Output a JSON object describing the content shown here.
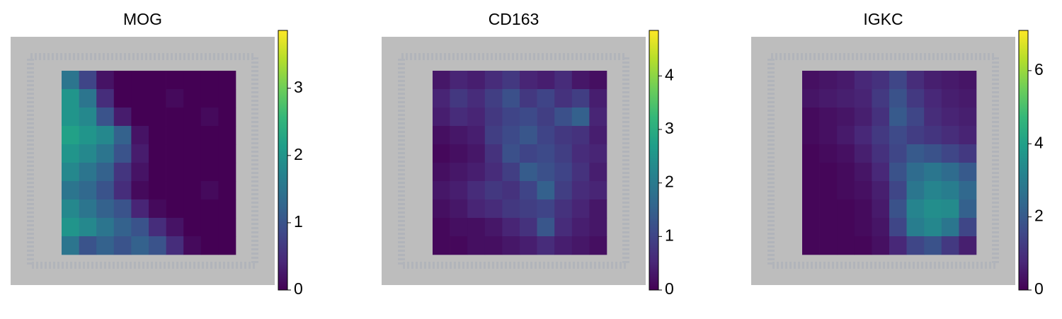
{
  "chart_data": [
    {
      "type": "spatial",
      "title": "MOG",
      "colormap": "viridis",
      "clim": [
        0,
        3.86
      ],
      "cticks": [
        0,
        1,
        2,
        3
      ],
      "values": [
        [
          1.5,
          0.8,
          0.2,
          0,
          0,
          0,
          0,
          0,
          0,
          0
        ],
        [
          2,
          1.5,
          0.5,
          0,
          0,
          0,
          0.1,
          0,
          0,
          0
        ],
        [
          2,
          1.8,
          1,
          0.3,
          0,
          0,
          0,
          0,
          0.1,
          0
        ],
        [
          2.2,
          2,
          1.8,
          1.2,
          0.2,
          0,
          0,
          0,
          0,
          0
        ],
        [
          2,
          1.8,
          1.5,
          1,
          0.3,
          0,
          0,
          0,
          0,
          0
        ],
        [
          1.8,
          1.5,
          1.2,
          0.6,
          0.2,
          0,
          0,
          0,
          0,
          0
        ],
        [
          1.5,
          1.3,
          1,
          0.5,
          0.1,
          0,
          0,
          0,
          0.1,
          0
        ],
        [
          1.8,
          1.5,
          1.2,
          1,
          0.4,
          0.1,
          0,
          0,
          0,
          0
        ],
        [
          2,
          1.8,
          1.5,
          1.2,
          1,
          0.5,
          0.2,
          0,
          0,
          0
        ],
        [
          1.5,
          1,
          1.2,
          1,
          1.2,
          1,
          0.5,
          0.1,
          0,
          0
        ]
      ]
    },
    {
      "type": "spatial",
      "title": "CD163",
      "colormap": "viridis",
      "clim": [
        0,
        4.85
      ],
      "cticks": [
        0,
        1,
        2,
        3,
        4
      ],
      "values": [
        [
          0.3,
          0.5,
          0.4,
          0.6,
          0.8,
          0.5,
          0.4,
          0.6,
          0.3,
          0.2
        ],
        [
          0.5,
          0.8,
          0.6,
          0.9,
          1.2,
          0.8,
          1,
          0.7,
          0.9,
          0.4
        ],
        [
          0.4,
          0.6,
          0.5,
          0.8,
          1,
          1.1,
          0.9,
          1.2,
          1.5,
          0.5
        ],
        [
          0.2,
          0.3,
          0.4,
          0.9,
          1.1,
          1.3,
          1,
          0.8,
          0.7,
          0.4
        ],
        [
          0.1,
          0.2,
          0.3,
          0.7,
          1.2,
          1,
          1.1,
          0.9,
          0.6,
          0.5
        ],
        [
          0.2,
          0.3,
          0.4,
          0.6,
          0.9,
          1.4,
          1.2,
          1,
          0.7,
          0.4
        ],
        [
          0.3,
          0.4,
          0.6,
          0.8,
          0.7,
          1,
          1.5,
          0.9,
          0.6,
          0.5
        ],
        [
          0.2,
          0.3,
          0.5,
          0.6,
          0.8,
          0.9,
          1,
          0.7,
          0.5,
          0.3
        ],
        [
          0.1,
          0.2,
          0.2,
          0.3,
          0.5,
          0.7,
          1.3,
          0.6,
          0.4,
          0.3
        ],
        [
          0.1,
          0.1,
          0.2,
          0.2,
          0.3,
          0.4,
          0.6,
          0.4,
          0.3,
          0.2
        ]
      ]
    },
    {
      "type": "spatial",
      "title": "IGKC",
      "colormap": "viridis",
      "clim": [
        0,
        7.1
      ],
      "cticks": [
        0,
        2,
        4,
        6
      ],
      "values": [
        [
          0.3,
          0.4,
          0.5,
          0.8,
          1,
          1.5,
          0.9,
          0.6,
          0.5,
          0.4
        ],
        [
          0.4,
          0.5,
          0.6,
          0.7,
          1.2,
          1.8,
          1.2,
          0.8,
          0.6,
          0.5
        ],
        [
          0.2,
          0.3,
          0.4,
          0.6,
          1,
          2,
          1.5,
          0.9,
          0.7,
          0.6
        ],
        [
          0.2,
          0.3,
          0.5,
          0.8,
          1.2,
          1.6,
          1.3,
          1.1,
          0.9,
          0.7
        ],
        [
          0.1,
          0.2,
          0.3,
          0.6,
          1,
          1.5,
          2,
          1.8,
          1.5,
          1.2
        ],
        [
          0.1,
          0.1,
          0.2,
          0.4,
          0.8,
          1.8,
          2.5,
          2.8,
          2.5,
          2
        ],
        [
          0.1,
          0.1,
          0.2,
          0.3,
          0.6,
          1.5,
          2.8,
          3.2,
          3,
          2.4
        ],
        [
          0.1,
          0.1,
          0.1,
          0.2,
          0.5,
          1.8,
          3.2,
          3.5,
          3.4,
          2.2
        ],
        [
          0.1,
          0.1,
          0.1,
          0.2,
          0.4,
          1.5,
          3,
          3.3,
          2.8,
          1.5
        ],
        [
          0.1,
          0.1,
          0.1,
          0.1,
          0.3,
          0.8,
          1.5,
          1.8,
          1.2,
          0.6
        ]
      ]
    }
  ]
}
